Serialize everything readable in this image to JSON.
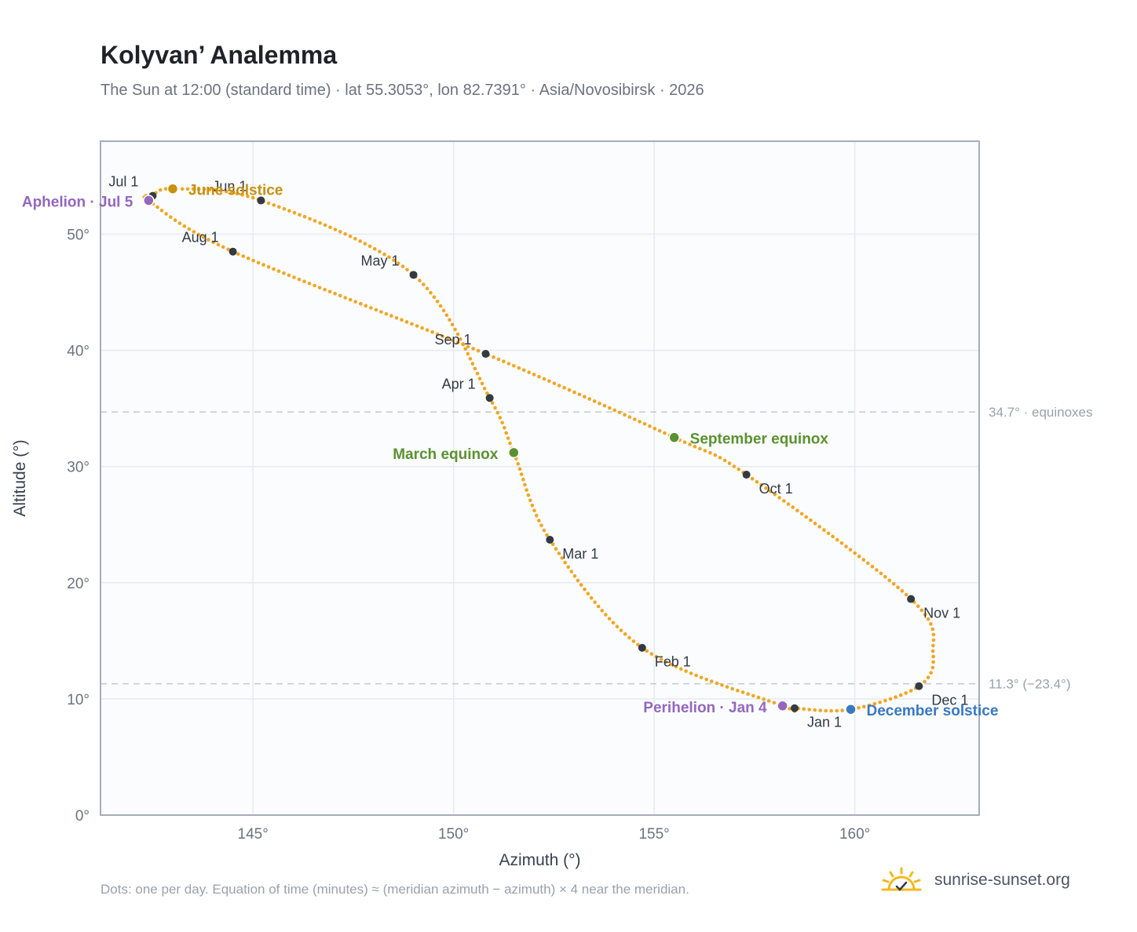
{
  "header": {
    "title": "Kolyvan’ Analemma",
    "subtitle": "The Sun at 12:00 (standard time) · lat 55.3053°, lon 82.7391° · Asia/Novosibirsk · 2026"
  },
  "footer": {
    "note": "Dots: one per day. Equation of time (minutes) ≈ (meridian azimuth − azimuth) × 4 near the meridian.",
    "brand": "sunrise-sunset.org"
  },
  "colors": {
    "curve": "#f2a521",
    "month_marker": "#333a44",
    "solstice_june": "#c8900f",
    "solstice_december": "#3a78c3",
    "equinox": "#5b9130",
    "apsis": "#9467bd",
    "reference_line": "#c3c9d2",
    "plot_bg": "#fafcfe",
    "grid": "#e6eaf0",
    "frame": "#a4adba"
  },
  "chart_data": {
    "type": "scatter",
    "xlabel": "Azimuth (°)",
    "ylabel": "Altitude (°)",
    "xlim": [
      141.2,
      163.1
    ],
    "ylim": [
      0,
      58
    ],
    "xticks": [
      {
        "value": 145,
        "label": "145°"
      },
      {
        "value": 150,
        "label": "150°"
      },
      {
        "value": 155,
        "label": "155°"
      },
      {
        "value": 160,
        "label": "160°"
      }
    ],
    "yticks": [
      {
        "value": 0,
        "label": "0°"
      },
      {
        "value": 10,
        "label": "10°"
      },
      {
        "value": 20,
        "label": "20°"
      },
      {
        "value": 30,
        "label": "30°"
      },
      {
        "value": 40,
        "label": "40°"
      },
      {
        "value": 50,
        "label": "50°"
      }
    ],
    "grid": true,
    "reference_lines": [
      {
        "y": 34.7,
        "label": "34.7° · equinoxes"
      },
      {
        "y": 11.3,
        "label": "11.3° (−23.4°)"
      }
    ],
    "month_markers": [
      {
        "label": "Jan 1",
        "x": 158.5,
        "y": 9.2
      },
      {
        "label": "Feb 1",
        "x": 154.7,
        "y": 14.4
      },
      {
        "label": "Mar 1",
        "x": 152.4,
        "y": 23.7
      },
      {
        "label": "Apr 1",
        "x": 150.9,
        "y": 35.9
      },
      {
        "label": "May 1",
        "x": 149.0,
        "y": 46.5
      },
      {
        "label": "Jun 1",
        "x": 145.2,
        "y": 52.9
      },
      {
        "label": "Jul 1",
        "x": 142.5,
        "y": 53.3
      },
      {
        "label": "Aug 1",
        "x": 144.5,
        "y": 48.5
      },
      {
        "label": "Sep 1",
        "x": 150.8,
        "y": 39.7
      },
      {
        "label": "Oct 1",
        "x": 157.3,
        "y": 29.3
      },
      {
        "label": "Nov 1",
        "x": 161.4,
        "y": 18.6
      },
      {
        "label": "Dec 1",
        "x": 161.6,
        "y": 11.1
      }
    ],
    "events": [
      {
        "label": "June solstice",
        "x": 143.0,
        "y": 53.9,
        "kind": "solstice_june"
      },
      {
        "label": "December solstice",
        "x": 159.9,
        "y": 9.1,
        "kind": "solstice_december"
      },
      {
        "label": "March equinox",
        "x": 151.5,
        "y": 31.2,
        "kind": "equinox"
      },
      {
        "label": "September equinox",
        "x": 155.5,
        "y": 32.5,
        "kind": "equinox"
      },
      {
        "label": "Aphelion · Jul 5",
        "x": 142.4,
        "y": 52.9,
        "kind": "apsis"
      },
      {
        "label": "Perihelion · Jan 4",
        "x": 158.2,
        "y": 9.4,
        "kind": "apsis"
      }
    ],
    "path_anchors": [
      {
        "x": 142.4,
        "y": 52.9
      },
      {
        "x": 144.5,
        "y": 48.5
      },
      {
        "x": 150.8,
        "y": 39.7
      },
      {
        "x": 155.5,
        "y": 32.5
      },
      {
        "x": 157.3,
        "y": 29.3
      },
      {
        "x": 161.4,
        "y": 18.6
      },
      {
        "x": 161.95,
        "y": 14.0
      },
      {
        "x": 161.6,
        "y": 11.1
      },
      {
        "x": 159.9,
        "y": 9.1
      },
      {
        "x": 158.5,
        "y": 9.2
      },
      {
        "x": 158.2,
        "y": 9.4
      },
      {
        "x": 154.7,
        "y": 14.4
      },
      {
        "x": 152.4,
        "y": 23.7
      },
      {
        "x": 151.5,
        "y": 31.2
      },
      {
        "x": 150.9,
        "y": 35.9
      },
      {
        "x": 149.0,
        "y": 46.5
      },
      {
        "x": 145.2,
        "y": 52.9
      },
      {
        "x": 143.0,
        "y": 53.9
      },
      {
        "x": 142.5,
        "y": 53.3
      }
    ]
  }
}
